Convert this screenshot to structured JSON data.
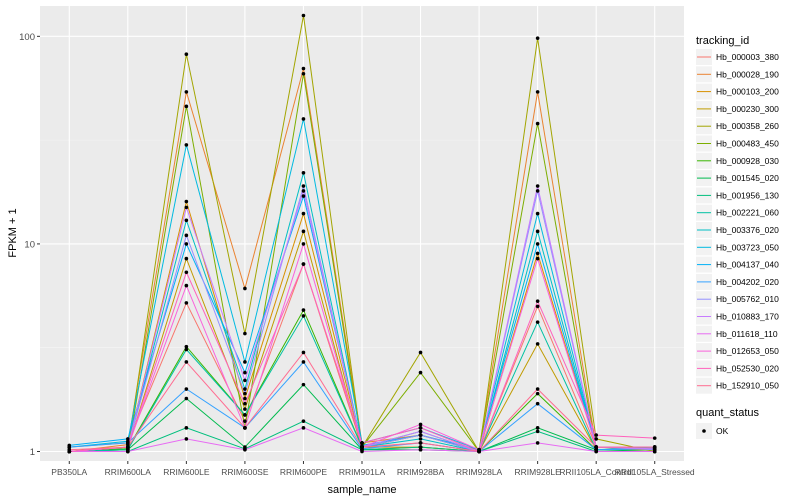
{
  "chart_data": {
    "type": "line",
    "xlabel": "sample_name",
    "ylabel": "FPKM + 1",
    "y_scale": "log10",
    "ylim": [
      0.9,
      140
    ],
    "y_ticks": [
      1,
      10,
      100
    ],
    "y_tick_labels": [
      "1",
      "10",
      "100"
    ],
    "grid": true,
    "legend_position": "right",
    "legend_title": "tracking_id",
    "legend2_title": "quant_status",
    "legend2_items": [
      "OK"
    ],
    "categories": [
      "PB350LA",
      "RRIM600LA",
      "RRIM600LE",
      "RRIM600SE",
      "RRIM600PE",
      "RRIM901LA",
      "RRIM928BA",
      "RRIM928LA",
      "RRIM928LE",
      "RRII105LA_Control",
      "RRII105LA_Stressed"
    ],
    "series": [
      {
        "name": "Hb_000003_380",
        "color": "#F8766D",
        "values": [
          1.05,
          1.1,
          5.2,
          1.4,
          8.0,
          1.05,
          1.1,
          1.0,
          5.0,
          1.05,
          1.03
        ]
      },
      {
        "name": "Hb_000028_190",
        "color": "#EA8331",
        "values": [
          1.0,
          1.08,
          54,
          6.1,
          70,
          1.1,
          1.2,
          1.02,
          54,
          1.05,
          1.03
        ]
      },
      {
        "name": "Hb_000103_200",
        "color": "#D89000",
        "values": [
          1.0,
          1.05,
          16,
          1.8,
          14,
          1.05,
          1.05,
          1.0,
          9.0,
          1.05,
          1.02
        ]
      },
      {
        "name": "Hb_000230_300",
        "color": "#C09B00",
        "values": [
          1.0,
          1.03,
          8.5,
          1.6,
          11.5,
          1.02,
          1.05,
          1.0,
          3.3,
          1.02,
          1.02
        ]
      },
      {
        "name": "Hb_000358_260",
        "color": "#A3A500",
        "values": [
          1.0,
          1.02,
          82,
          3.7,
          126,
          1.05,
          3.0,
          1.0,
          98,
          1.15,
          1.0
        ]
      },
      {
        "name": "Hb_000483_450",
        "color": "#7CAE00",
        "values": [
          1.0,
          1.0,
          46,
          1.3,
          66,
          1.05,
          2.4,
          1.0,
          38,
          1.02,
          1.03
        ]
      },
      {
        "name": "Hb_000928_030",
        "color": "#39B600",
        "values": [
          1.0,
          1.03,
          3.2,
          1.5,
          4.8,
          1.05,
          1.2,
          1.0,
          1.9,
          1.02,
          1.03
        ]
      },
      {
        "name": "Hb_001545_020",
        "color": "#00BB4E",
        "values": [
          1.0,
          1.02,
          1.8,
          1.05,
          2.1,
          1.02,
          1.02,
          1.0,
          1.3,
          1.02,
          1.0
        ]
      },
      {
        "name": "Hb_001956_130",
        "color": "#00BF7D",
        "values": [
          1.0,
          1.0,
          1.3,
          1.03,
          1.4,
          1.02,
          1.05,
          1.0,
          1.25,
          1.0,
          1.0
        ]
      },
      {
        "name": "Hb_002221_060",
        "color": "#00C1A3",
        "values": [
          1.0,
          1.02,
          3.1,
          1.5,
          4.5,
          1.05,
          1.25,
          1.0,
          4.2,
          1.02,
          1.05
        ]
      },
      {
        "name": "Hb_003376_020",
        "color": "#00BFC4",
        "values": [
          1.0,
          1.05,
          13,
          2.0,
          22,
          1.05,
          1.15,
          1.0,
          11.5,
          1.05,
          1.05
        ]
      },
      {
        "name": "Hb_003723_050",
        "color": "#00BAE0",
        "values": [
          1.05,
          1.12,
          30,
          2.7,
          40,
          1.1,
          1.3,
          1.02,
          14,
          1.05,
          1.05
        ]
      },
      {
        "name": "Hb_004137_040",
        "color": "#00B0F6",
        "values": [
          1.07,
          1.15,
          10,
          2.4,
          17,
          1.07,
          1.2,
          1.02,
          10,
          1.05,
          1.05
        ]
      },
      {
        "name": "Hb_004202_020",
        "color": "#35A2FF",
        "values": [
          1.05,
          1.1,
          2.0,
          1.3,
          2.7,
          1.03,
          1.1,
          1.0,
          1.7,
          1.02,
          1.03
        ]
      },
      {
        "name": "Hb_005762_010",
        "color": "#9590FF",
        "values": [
          1.0,
          1.05,
          11,
          1.9,
          19,
          1.05,
          1.2,
          1.0,
          18,
          1.05,
          1.02
        ]
      },
      {
        "name": "Hb_010883_170",
        "color": "#C77CFF",
        "values": [
          1.0,
          1.05,
          15,
          2.2,
          18,
          1.05,
          1.25,
          1.0,
          19,
          1.05,
          1.03
        ]
      },
      {
        "name": "Hb_011618_110",
        "color": "#E76BF3",
        "values": [
          1.0,
          1.0,
          1.15,
          1.02,
          1.3,
          1.0,
          1.02,
          1.0,
          1.1,
          1.0,
          1.0
        ]
      },
      {
        "name": "Hb_012653_050",
        "color": "#FA62DB",
        "values": [
          1.0,
          1.05,
          6.3,
          1.3,
          10,
          1.05,
          1.35,
          1.02,
          8.5,
          1.05,
          1.05
        ]
      },
      {
        "name": "Hb_052530_020",
        "color": "#FF62BC",
        "values": [
          1.0,
          1.05,
          7.3,
          1.7,
          8.0,
          1.1,
          1.3,
          1.0,
          5.3,
          1.2,
          1.16
        ]
      },
      {
        "name": "Hb_152910_050",
        "color": "#FF6C91",
        "values": [
          1.02,
          1.05,
          2.7,
          1.3,
          3.0,
          1.05,
          1.1,
          1.0,
          2.0,
          1.05,
          1.05
        ]
      }
    ]
  }
}
